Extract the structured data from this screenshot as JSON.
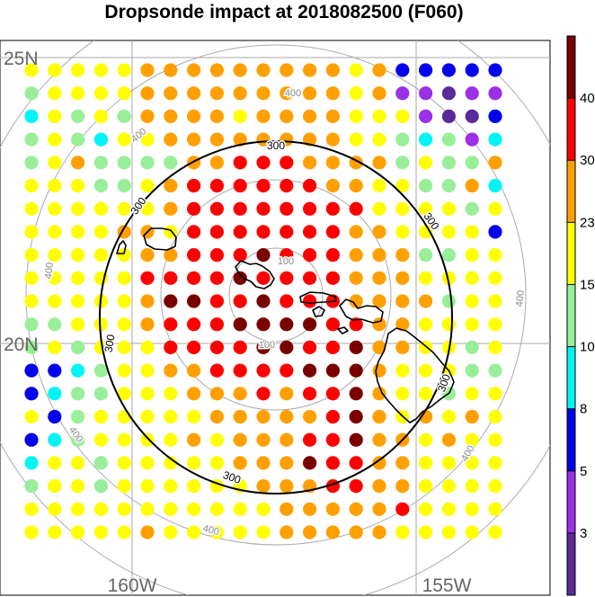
{
  "title": "Dropsonde impact at 2018082500 (F060)",
  "axes": {
    "lat_labels": [
      "25N",
      "20N"
    ],
    "lon_labels": [
      "160W",
      "155W"
    ]
  },
  "contours": {
    "main_value": "300",
    "inner_value": "100",
    "outer_value": "400"
  },
  "colorbar": {
    "ticks": [
      "3",
      "5",
      "8",
      "10",
      "15",
      "23",
      "30",
      "40"
    ],
    "colors": [
      "#5a2a9a",
      "#9b30e8",
      "#0000ee",
      "#00f5f5",
      "#99ee99",
      "#ffff00",
      "#ffa000",
      "#ff0000",
      "#7a0000"
    ]
  },
  "grid": {
    "rows": 21,
    "cols": 21,
    "category_rows": [
      "555556666666665622222",
      "455556666666665611011",
      "354546666566665551002",
      "454355666666665543413",
      "456444466777666645446",
      "555445677777766554463",
      "555555677777777555545",
      "555566577777776655552",
      "555556677787776664455",
      "555557777877776665555",
      "555556887787776666455",
      "445556777888877665555",
      "454555777788778665545",
      "223455667777888655544",
      "234455566676778655455",
      "524555556666678656565",
      "234555565666778665655",
      "355455555666877665555",
      "455455555566677665555",
      "555555555556666675555",
      "555556555556666655555"
    ]
  }
}
